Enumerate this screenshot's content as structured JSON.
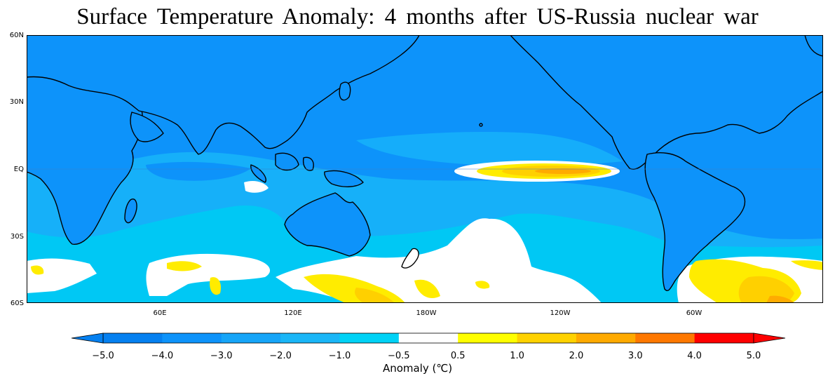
{
  "title": "Surface Temperature Anomaly: 4 months after US-Russia nuclear war",
  "map": {
    "lat_labels": [
      "60N",
      "30N",
      "EQ",
      "30S",
      "60S"
    ],
    "lon_labels": [
      "60E",
      "120E",
      "180W",
      "120W",
      "60W"
    ],
    "colors": {
      "ocean_cold": "#0d93fa",
      "ocean_mid": "#16b0f9",
      "ocean_light": "#00c8f4",
      "neutral": "#ffffff",
      "warm_1": "#ffec00",
      "warm_2": "#ffd000",
      "warm_3": "#ffab00",
      "warm_4": "#ff7600",
      "coast": "#000000"
    }
  },
  "colorbar": {
    "ticks": [
      "−5.0",
      "−4.0",
      "−3.0",
      "−2.0",
      "−1.0",
      "−0.5",
      "0.5",
      "1.0",
      "2.0",
      "3.0",
      "4.0",
      "5.0"
    ],
    "colors": [
      "#0580f0",
      "#0d93fa",
      "#16a5f8",
      "#1ab6f7",
      "#00d2f6",
      "#ffffff",
      "#ffff00",
      "#ffd200",
      "#ffaa00",
      "#ff7800",
      "#ff0000"
    ],
    "label": "Anomaly (℃)",
    "extend": "both"
  }
}
